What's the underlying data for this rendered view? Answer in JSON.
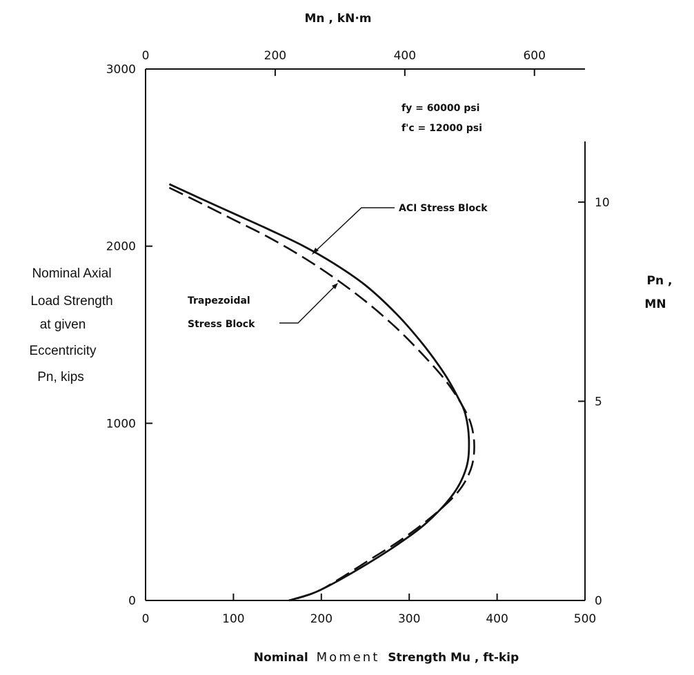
{
  "chart_data": {
    "type": "line",
    "xlabel_top": "Mn , kN·m",
    "xlabel_bottom_prefix": "Nominal",
    "xlabel_bottom_middle": "Moment",
    "xlabel_bottom_suffix": "Strength Mu , ft-kip",
    "ylabel_left_lines": [
      "Nominal Axial",
      "Load Strength",
      "at given",
      "Eccentricity",
      "Pn, kips"
    ],
    "ylabel_right_lines": [
      "Pn ,",
      "MN"
    ],
    "xlim": [
      0,
      500
    ],
    "ylim": [
      0,
      3000
    ],
    "x_top_lim_kNm": [
      0,
      678
    ],
    "y_right_lim_MN": [
      0,
      13.34
    ],
    "x_ticks": [
      0,
      100,
      200,
      300,
      400,
      500
    ],
    "x_tick_labels": [
      "0",
      "100",
      "200",
      "300",
      "400",
      "500"
    ],
    "y_ticks": [
      0,
      1000,
      2000,
      3000
    ],
    "y_tick_labels": [
      "0",
      "1000",
      "2000",
      "3000"
    ],
    "x_top_ticks": [
      0,
      200,
      400,
      600
    ],
    "x_top_tick_labels": [
      "0",
      "200",
      "400",
      "600"
    ],
    "y_right_ticks": [
      0,
      5,
      10
    ],
    "y_right_tick_labels": [
      "0",
      "5",
      "10"
    ],
    "annotation_material": [
      "fy = 60000 psi",
      "f'c = 12000 psi"
    ],
    "series": [
      {
        "name": "ACI Stress Block",
        "style": "solid",
        "x": [
          27,
          60,
          100,
          140,
          180,
          215,
          250,
          285,
          315,
          340,
          355,
          364,
          368,
          365,
          350,
          320,
          285,
          250,
          215,
          190,
          163
        ],
        "y": [
          2350,
          2275,
          2185,
          2095,
          2000,
          1900,
          1780,
          1620,
          1450,
          1280,
          1150,
          1050,
          900,
          750,
          600,
          440,
          310,
          200,
          100,
          40,
          0
        ]
      },
      {
        "name": "Trapezoidal Stress Block",
        "style": "dashed",
        "x": [
          27,
          60,
          100,
          140,
          180,
          215,
          250,
          285,
          315,
          340,
          358,
          370,
          374,
          370,
          355,
          325,
          290,
          255,
          220,
          195,
          165
        ],
        "y": [
          2330,
          2250,
          2150,
          2050,
          1935,
          1820,
          1690,
          1540,
          1390,
          1250,
          1120,
          1000,
          870,
          740,
          610,
          470,
          340,
          230,
          120,
          50,
          0
        ]
      }
    ],
    "series_labels": {
      "aci": "ACI Stress Block",
      "trap_line1": "Trapezoidal",
      "trap_line2": "Stress Block"
    },
    "legend": "none",
    "grid": false
  }
}
